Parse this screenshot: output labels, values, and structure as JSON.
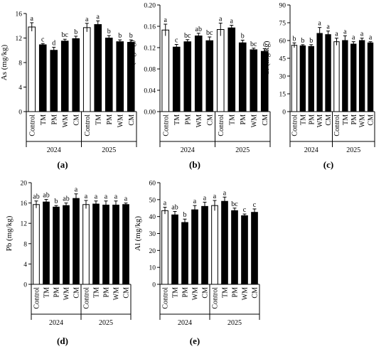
{
  "figure": {
    "panel_labels": [
      "(a)",
      "(b)",
      "(c)",
      "(d)",
      "(e)"
    ],
    "years": [
      "2024",
      "2025"
    ]
  },
  "colors": {
    "control_bar": "#ffffff",
    "treatment_bar": "#000000",
    "outline": "#000000"
  },
  "chart_data": [
    {
      "type": "bar",
      "panel": "(a)",
      "ylabel": "As (mg/kg)",
      "ylim": [
        0,
        16
      ],
      "yticks": [
        0,
        4,
        8,
        12,
        16
      ],
      "ytick_labels": [
        "0",
        "4",
        "8",
        "12",
        "16"
      ],
      "groups": [
        "2024",
        "2025"
      ],
      "categories": [
        "Control",
        "TM",
        "PM",
        "WM",
        "CM"
      ],
      "series": [
        {
          "group": "2024",
          "values": [
            13.8,
            10.9,
            10.0,
            11.5,
            11.9
          ],
          "errors": [
            0.7,
            0.2,
            0.5,
            0.3,
            0.4
          ],
          "letters": [
            "a",
            "c",
            "d",
            "bc",
            "b"
          ]
        },
        {
          "group": "2025",
          "values": [
            13.7,
            14.2,
            12.0,
            11.4,
            11.3
          ],
          "errors": [
            0.7,
            0.6,
            0.4,
            0.3,
            0.4
          ],
          "letters": [
            "a",
            "a",
            "b",
            "b",
            "b"
          ]
        }
      ]
    },
    {
      "type": "bar",
      "panel": "(b)",
      "ylabel": "Cd (mg/kg)",
      "ylim": [
        0,
        0.2
      ],
      "yticks": [
        0,
        0.04,
        0.08,
        0.12,
        0.16,
        0.2
      ],
      "ytick_labels": [
        "0.00",
        "0.04",
        "0.08",
        "0.12",
        "0.16",
        "0.20"
      ],
      "groups": [
        "2024",
        "2025"
      ],
      "categories": [
        "Control",
        "TM",
        "PM",
        "WM",
        "CM"
      ],
      "series": [
        {
          "group": "2024",
          "values": [
            0.153,
            0.121,
            0.131,
            0.142,
            0.133
          ],
          "errors": [
            0.011,
            0.005,
            0.004,
            0.005,
            0.007
          ],
          "letters": [
            "a",
            "c",
            "bc",
            "ab",
            "bc"
          ]
        },
        {
          "group": "2025",
          "values": [
            0.154,
            0.157,
            0.129,
            0.116,
            0.113
          ],
          "errors": [
            0.012,
            0.005,
            0.005,
            0.003,
            0.005
          ],
          "letters": [
            "a",
            "a",
            "b",
            "bc",
            "c"
          ]
        }
      ]
    },
    {
      "type": "bar",
      "panel": "(c)",
      "ylabel": "Cr (mg/kg)",
      "ylim": [
        0,
        90
      ],
      "yticks": [
        0,
        15,
        30,
        45,
        60,
        75,
        90
      ],
      "ytick_labels": [
        "0",
        "15",
        "30",
        "45",
        "60",
        "75",
        "90"
      ],
      "groups": [
        "2024",
        "2025"
      ],
      "categories": [
        "Control",
        "TM",
        "PM",
        "WM",
        "CM"
      ],
      "series": [
        {
          "group": "2024",
          "values": [
            56.0,
            55.5,
            55.0,
            66.0,
            65.0
          ],
          "errors": [
            2.0,
            1.0,
            1.5,
            5.0,
            3.0
          ],
          "letters": [
            "b",
            "b",
            "b",
            "a",
            "a"
          ]
        },
        {
          "group": "2025",
          "values": [
            59.0,
            60.0,
            57.0,
            60.0,
            58.0
          ],
          "errors": [
            3.0,
            4.0,
            2.0,
            2.0,
            1.0
          ],
          "letters": [
            "a",
            "a",
            "a",
            "a",
            "a"
          ]
        }
      ]
    },
    {
      "type": "bar",
      "panel": "(d)",
      "ylabel": "Pb (mg/kg)",
      "ylim": [
        0,
        20
      ],
      "yticks": [
        0,
        4,
        8,
        12,
        16,
        20
      ],
      "ytick_labels": [
        "0",
        "4",
        "8",
        "12",
        "16",
        "20"
      ],
      "groups": [
        "2024",
        "2025"
      ],
      "categories": [
        "Control",
        "TM",
        "PM",
        "WM",
        "CM"
      ],
      "series": [
        {
          "group": "2024",
          "values": [
            15.7,
            16.2,
            15.2,
            15.5,
            16.9
          ],
          "errors": [
            0.7,
            0.5,
            0.3,
            0.5,
            0.9
          ],
          "letters": [
            "ab",
            "ab",
            "b",
            "ab",
            "a"
          ]
        },
        {
          "group": "2025",
          "values": [
            15.7,
            15.8,
            15.6,
            15.6,
            15.7
          ],
          "errors": [
            0.8,
            0.6,
            0.8,
            0.8,
            0.3
          ],
          "letters": [
            "a",
            "a",
            "a",
            "a",
            "a"
          ]
        }
      ]
    },
    {
      "type": "bar",
      "panel": "(e)",
      "ylabel": "Al (mg/kg)",
      "ylim": [
        0,
        60
      ],
      "yticks": [
        0,
        10,
        20,
        30,
        40,
        50,
        60
      ],
      "ytick_labels": [
        "0",
        "10",
        "20",
        "30",
        "40",
        "50",
        "60"
      ],
      "groups": [
        "2024",
        "2025"
      ],
      "categories": [
        "Control",
        "TM",
        "PM",
        "WM",
        "CM"
      ],
      "series": [
        {
          "group": "2024",
          "values": [
            43.5,
            41.0,
            36.5,
            44.0,
            46.0
          ],
          "errors": [
            2.0,
            2.0,
            2.0,
            2.5,
            2.5
          ],
          "letters": [
            "a",
            "ab",
            "b",
            "a",
            "a"
          ]
        },
        {
          "group": "2025",
          "values": [
            46.5,
            49.0,
            43.5,
            40.5,
            42.5
          ],
          "errors": [
            3.0,
            2.5,
            1.5,
            1.0,
            2.0
          ],
          "letters": [
            "a",
            "a",
            "bc",
            "c",
            "c"
          ]
        }
      ]
    }
  ]
}
